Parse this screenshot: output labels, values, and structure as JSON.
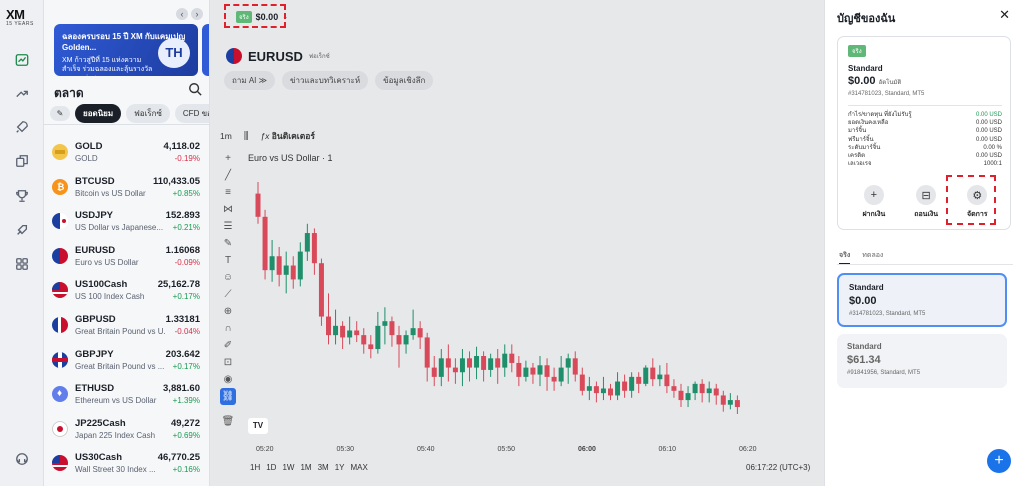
{
  "logo": {
    "main": "XM",
    "sub": "15 YEARS"
  },
  "banner": {
    "title": "ฉลองครบรอบ 15 ปี XM กับแคมเปญ Golden...",
    "text": "XM ก้าวสู่ปีที่ 15 แห่งความสำเร็จ ร่วมฉลองและลุ้นรางวัลรวมมูลค่าสูง...",
    "badge": "TH"
  },
  "markets": {
    "title": "ตลาด",
    "tabs": [
      "ยอดนิยม",
      "ฟอเร็กซ์",
      "CFD ของ"
    ],
    "items": [
      {
        "symbol": "GOLD",
        "desc": "GOLD",
        "price": "4,118.02",
        "change": "-0.19%",
        "dir": "down",
        "flag": "gold"
      },
      {
        "symbol": "BTCUSD",
        "desc": "Bitcoin vs US Dollar",
        "price": "110,433.05",
        "change": "+0.85%",
        "dir": "up",
        "flag": "btc"
      },
      {
        "symbol": "USDJPY",
        "desc": "US Dollar vs Japanese...",
        "price": "152.893",
        "change": "+0.21%",
        "dir": "up",
        "flag": "usjp"
      },
      {
        "symbol": "EURUSD",
        "desc": "Euro vs US Dollar",
        "price": "1.16068",
        "change": "-0.09%",
        "dir": "down",
        "flag": "euus"
      },
      {
        "symbol": "US100Cash",
        "desc": "US 100 Index Cash",
        "price": "25,162.78",
        "change": "+0.17%",
        "dir": "up",
        "flag": "us"
      },
      {
        "symbol": "GBPUSD",
        "desc": "Great Britain Pound vs U...",
        "price": "1.33181",
        "change": "-0.04%",
        "dir": "down",
        "flag": "gbus"
      },
      {
        "symbol": "GBPJPY",
        "desc": "Great Britain Pound vs ...",
        "price": "203.642",
        "change": "+0.17%",
        "dir": "up",
        "flag": "gbjp"
      },
      {
        "symbol": "ETHUSD",
        "desc": "Ethereum vs US Dollar",
        "price": "3,881.60",
        "change": "+1.39%",
        "dir": "up",
        "flag": "eth"
      },
      {
        "symbol": "JP225Cash",
        "desc": "Japan 225 Index Cash",
        "price": "49,272",
        "change": "+0.69%",
        "dir": "up",
        "flag": "jp"
      },
      {
        "symbol": "US30Cash",
        "desc": "Wall Street 30 Index ...",
        "price": "46,770.25",
        "change": "+0.16%",
        "dir": "up",
        "flag": "us"
      }
    ]
  },
  "chart_header": {
    "account_badge": "จริง",
    "account_amount": "$0.00",
    "symbol": "EURUSD",
    "symbol_category": "ฟอเร็กซ์",
    "chips": [
      "ถาม AI ≫",
      "ข่าวและบทวิเคราะห์",
      "ข้อมูลเชิงลึก"
    ],
    "timeframe": "1m",
    "indicators_label": "อินดิเคเตอร์"
  },
  "chart_data": {
    "type": "candlestick",
    "title": "Euro vs US Dollar · 1",
    "x_ticks": [
      "05:20",
      "05:30",
      "05:40",
      "05:50",
      "06:00",
      "06:10",
      "06:20"
    ],
    "bottom_timeframes": [
      "1H",
      "1D",
      "1W",
      "1M",
      "3M",
      "1Y",
      "MAX"
    ],
    "clock": "06:17:22 (UTC+3)",
    "candles": [
      {
        "o": 0.95,
        "c": 0.85,
        "h": 1.0,
        "l": 0.82
      },
      {
        "o": 0.85,
        "c": 0.62,
        "h": 0.88,
        "l": 0.58
      },
      {
        "o": 0.62,
        "c": 0.68,
        "h": 0.75,
        "l": 0.57
      },
      {
        "o": 0.68,
        "c": 0.6,
        "h": 0.72,
        "l": 0.55
      },
      {
        "o": 0.6,
        "c": 0.64,
        "h": 0.7,
        "l": 0.52
      },
      {
        "o": 0.64,
        "c": 0.58,
        "h": 0.68,
        "l": 0.54
      },
      {
        "o": 0.58,
        "c": 0.7,
        "h": 0.74,
        "l": 0.55
      },
      {
        "o": 0.7,
        "c": 0.78,
        "h": 0.82,
        "l": 0.66
      },
      {
        "o": 0.78,
        "c": 0.65,
        "h": 0.8,
        "l": 0.6
      },
      {
        "o": 0.65,
        "c": 0.42,
        "h": 0.67,
        "l": 0.38
      },
      {
        "o": 0.42,
        "c": 0.34,
        "h": 0.52,
        "l": 0.3
      },
      {
        "o": 0.34,
        "c": 0.38,
        "h": 0.45,
        "l": 0.3
      },
      {
        "o": 0.38,
        "c": 0.33,
        "h": 0.4,
        "l": 0.28
      },
      {
        "o": 0.33,
        "c": 0.36,
        "h": 0.42,
        "l": 0.3
      },
      {
        "o": 0.36,
        "c": 0.34,
        "h": 0.4,
        "l": 0.31
      },
      {
        "o": 0.34,
        "c": 0.3,
        "h": 0.37,
        "l": 0.26
      },
      {
        "o": 0.3,
        "c": 0.28,
        "h": 0.34,
        "l": 0.24
      },
      {
        "o": 0.28,
        "c": 0.38,
        "h": 0.44,
        "l": 0.26
      },
      {
        "o": 0.38,
        "c": 0.4,
        "h": 0.46,
        "l": 0.3
      },
      {
        "o": 0.4,
        "c": 0.34,
        "h": 0.42,
        "l": 0.29
      },
      {
        "o": 0.34,
        "c": 0.3,
        "h": 0.38,
        "l": 0.2
      },
      {
        "o": 0.3,
        "c": 0.34,
        "h": 0.36,
        "l": 0.26
      },
      {
        "o": 0.34,
        "c": 0.37,
        "h": 0.45,
        "l": 0.32
      },
      {
        "o": 0.37,
        "c": 0.33,
        "h": 0.4,
        "l": 0.28
      },
      {
        "o": 0.33,
        "c": 0.2,
        "h": 0.35,
        "l": 0.14
      },
      {
        "o": 0.2,
        "c": 0.16,
        "h": 0.25,
        "l": 0.12
      },
      {
        "o": 0.16,
        "c": 0.24,
        "h": 0.28,
        "l": 0.12
      },
      {
        "o": 0.24,
        "c": 0.2,
        "h": 0.3,
        "l": 0.14
      },
      {
        "o": 0.2,
        "c": 0.18,
        "h": 0.24,
        "l": 0.13
      },
      {
        "o": 0.18,
        "c": 0.24,
        "h": 0.28,
        "l": 0.12
      },
      {
        "o": 0.24,
        "c": 0.2,
        "h": 0.27,
        "l": 0.14
      },
      {
        "o": 0.2,
        "c": 0.25,
        "h": 0.29,
        "l": 0.15
      },
      {
        "o": 0.25,
        "c": 0.19,
        "h": 0.27,
        "l": 0.14
      },
      {
        "o": 0.19,
        "c": 0.24,
        "h": 0.26,
        "l": 0.16
      },
      {
        "o": 0.24,
        "c": 0.2,
        "h": 0.28,
        "l": 0.13
      },
      {
        "o": 0.2,
        "c": 0.26,
        "h": 0.3,
        "l": 0.16
      },
      {
        "o": 0.26,
        "c": 0.22,
        "h": 0.3,
        "l": 0.18
      },
      {
        "o": 0.22,
        "c": 0.16,
        "h": 0.25,
        "l": 0.12
      },
      {
        "o": 0.16,
        "c": 0.2,
        "h": 0.23,
        "l": 0.14
      },
      {
        "o": 0.2,
        "c": 0.17,
        "h": 0.22,
        "l": 0.13
      },
      {
        "o": 0.17,
        "c": 0.21,
        "h": 0.25,
        "l": 0.12
      },
      {
        "o": 0.21,
        "c": 0.16,
        "h": 0.24,
        "l": 0.1
      },
      {
        "o": 0.16,
        "c": 0.14,
        "h": 0.2,
        "l": 0.1
      },
      {
        "o": 0.14,
        "c": 0.2,
        "h": 0.25,
        "l": 0.12
      },
      {
        "o": 0.2,
        "c": 0.24,
        "h": 0.26,
        "l": 0.13
      },
      {
        "o": 0.24,
        "c": 0.17,
        "h": 0.27,
        "l": 0.14
      },
      {
        "o": 0.17,
        "c": 0.1,
        "h": 0.2,
        "l": 0.08
      },
      {
        "o": 0.1,
        "c": 0.12,
        "h": 0.16,
        "l": 0.06
      },
      {
        "o": 0.12,
        "c": 0.09,
        "h": 0.14,
        "l": 0.05
      },
      {
        "o": 0.09,
        "c": 0.11,
        "h": 0.16,
        "l": 0.06
      },
      {
        "o": 0.11,
        "c": 0.08,
        "h": 0.13,
        "l": 0.06
      },
      {
        "o": 0.08,
        "c": 0.14,
        "h": 0.18,
        "l": 0.06
      },
      {
        "o": 0.14,
        "c": 0.1,
        "h": 0.17,
        "l": 0.07
      },
      {
        "o": 0.1,
        "c": 0.16,
        "h": 0.18,
        "l": 0.07
      },
      {
        "o": 0.16,
        "c": 0.13,
        "h": 0.18,
        "l": 0.09
      },
      {
        "o": 0.13,
        "c": 0.2,
        "h": 0.21,
        "l": 0.12
      },
      {
        "o": 0.2,
        "c": 0.15,
        "h": 0.24,
        "l": 0.12
      },
      {
        "o": 0.15,
        "c": 0.17,
        "h": 0.21,
        "l": 0.12
      },
      {
        "o": 0.17,
        "c": 0.12,
        "h": 0.22,
        "l": 0.09
      },
      {
        "o": 0.12,
        "c": 0.1,
        "h": 0.15,
        "l": 0.07
      },
      {
        "o": 0.1,
        "c": 0.06,
        "h": 0.13,
        "l": 0.03
      },
      {
        "o": 0.06,
        "c": 0.09,
        "h": 0.12,
        "l": 0.03
      },
      {
        "o": 0.09,
        "c": 0.13,
        "h": 0.14,
        "l": 0.06
      },
      {
        "o": 0.13,
        "c": 0.09,
        "h": 0.15,
        "l": 0.05
      },
      {
        "o": 0.09,
        "c": 0.11,
        "h": 0.14,
        "l": 0.05
      },
      {
        "o": 0.11,
        "c": 0.08,
        "h": 0.13,
        "l": 0.04
      },
      {
        "o": 0.08,
        "c": 0.04,
        "h": 0.1,
        "l": 0.01
      },
      {
        "o": 0.04,
        "c": 0.06,
        "h": 0.09,
        "l": 0.02
      },
      {
        "o": 0.06,
        "c": 0.03,
        "h": 0.08,
        "l": 0.0
      }
    ]
  },
  "account_panel": {
    "title": "บัญชีของฉัน",
    "card": {
      "badge": "จริง",
      "type": "Standard",
      "balance": "$0.00",
      "balance_suffix": "อัตโนมัติ",
      "account_info": "#314781023, Standard, MT5",
      "stats": [
        {
          "label": "กำไร/ขาดทุน ที่ยังไม่รับรู้",
          "value": "0.00 USD",
          "color": "green"
        },
        {
          "label": "ยอดเงินคงเหลือ",
          "value": "0.00 USD"
        },
        {
          "label": "มาร์จิ้น",
          "value": "0.00 USD"
        },
        {
          "label": "ฟรีมาร์จิ้น",
          "value": "0.00 USD"
        },
        {
          "label": "ระดับมาร์จิ้น",
          "value": "0.00 %"
        },
        {
          "label": "เครดิต",
          "value": "0.00 USD"
        },
        {
          "label": "เลเวอเรจ",
          "value": "1000:1"
        }
      ],
      "actions": [
        {
          "label": "ฝากเงิน",
          "icon": "plus-icon"
        },
        {
          "label": "ถอนเงิน",
          "icon": "withdraw-icon"
        },
        {
          "label": "จัดการ",
          "icon": "manage-icon"
        }
      ]
    },
    "tabs": [
      "จริง",
      "ทดลอง"
    ],
    "accounts": [
      {
        "type": "Standard",
        "balance": "$0.00",
        "info": "#314781023, Standard, MT5"
      },
      {
        "type": "Standard",
        "balance": "$61.34",
        "info": "#91841956, Standard, MT5"
      }
    ]
  },
  "colors": {
    "up": "#1a9a52",
    "down": "#d8314a",
    "candle_up": "#1e8f6a",
    "candle_down": "#d84a5a",
    "highlight": "#e0202a"
  }
}
